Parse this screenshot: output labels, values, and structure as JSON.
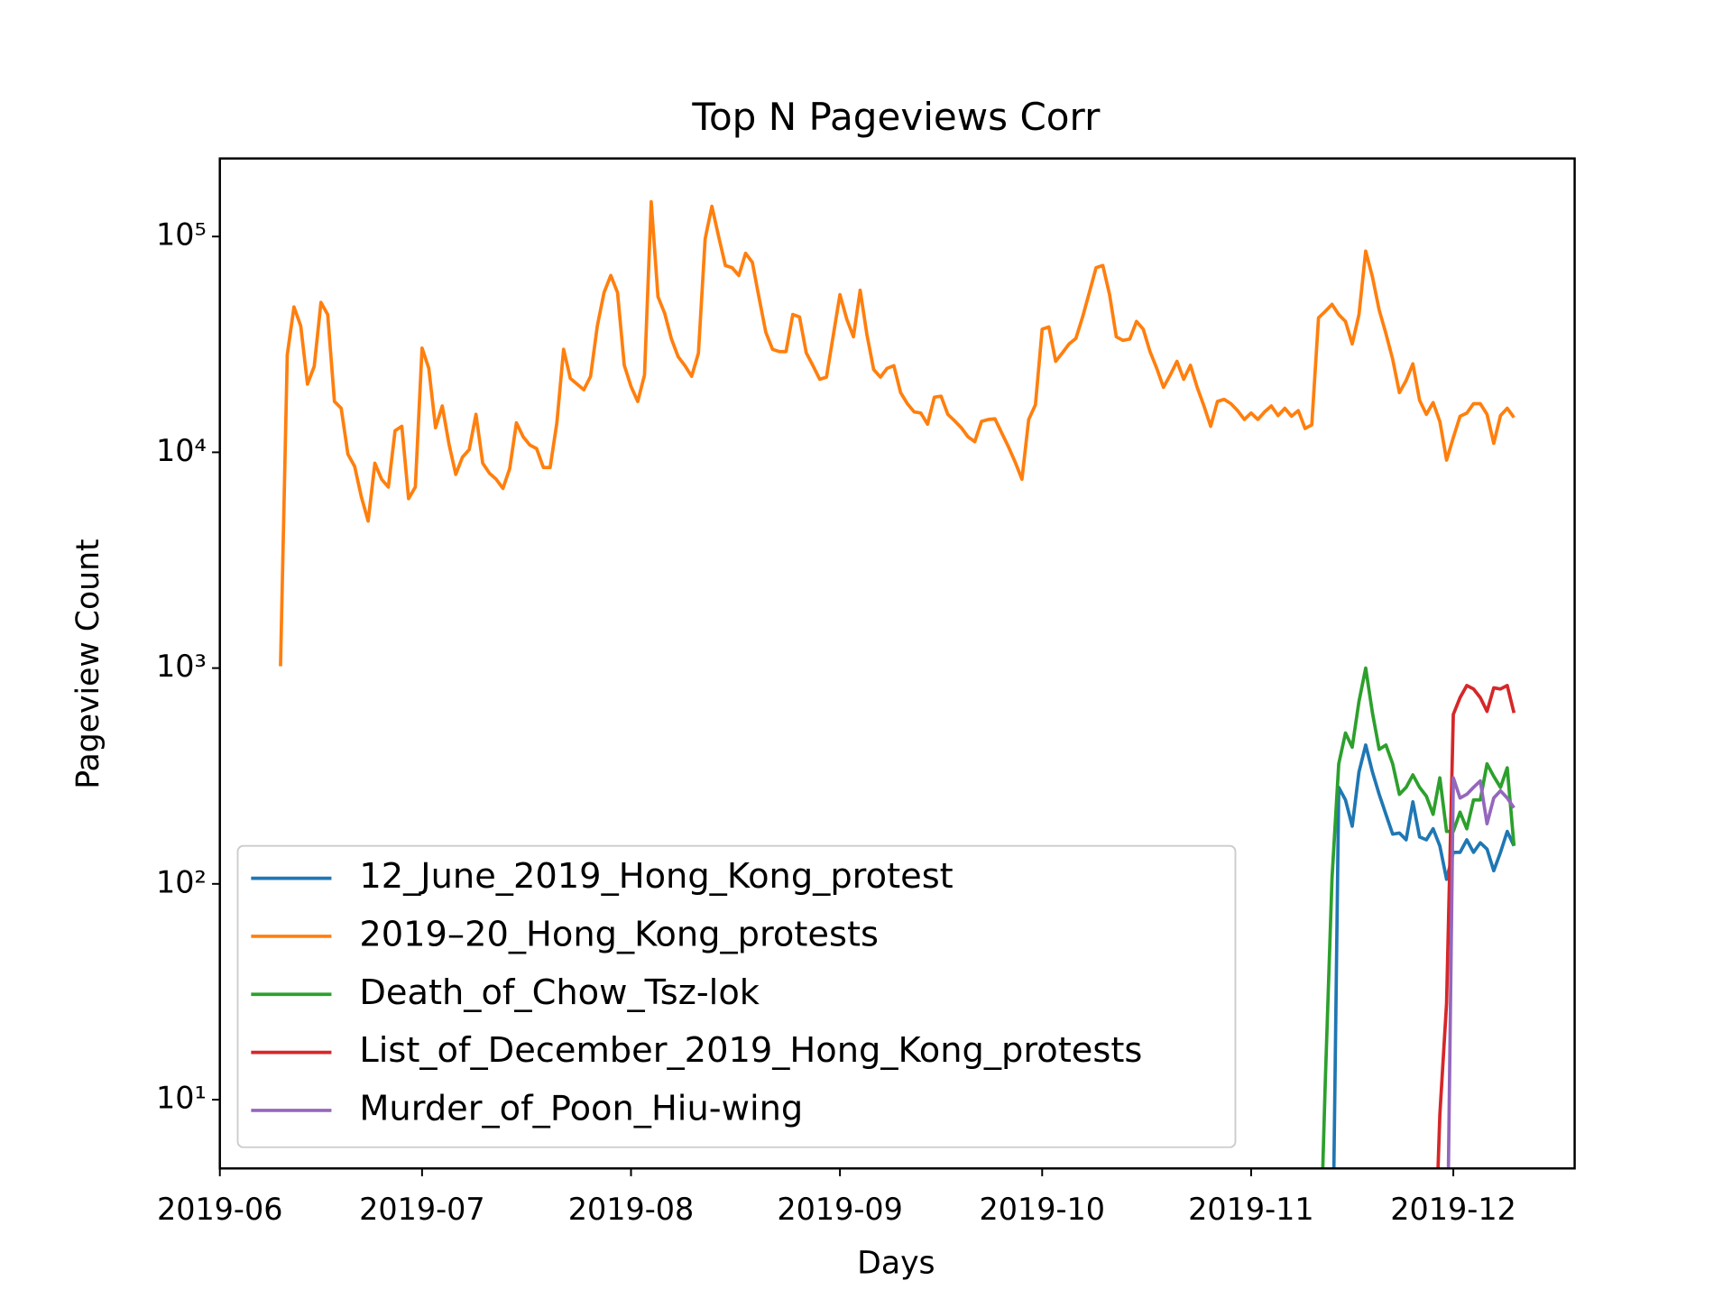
{
  "chart_data": {
    "type": "line",
    "title": "Top N Pageviews Corr",
    "xlabel": "Days",
    "ylabel": "Pageview Count",
    "yscale": "log",
    "xlim": [
      0,
      201
    ],
    "ylim": [
      4.8,
      230000
    ],
    "xticks": [
      {
        "value": 0,
        "label": "2019-06"
      },
      {
        "value": 30,
        "label": "2019-07"
      },
      {
        "value": 61,
        "label": "2019-08"
      },
      {
        "value": 92,
        "label": "2019-09"
      },
      {
        "value": 122,
        "label": "2019-10"
      },
      {
        "value": 153,
        "label": "2019-11"
      },
      {
        "value": 183,
        "label": "2019-12"
      }
    ],
    "yticks": [
      {
        "value": 10,
        "label": "10¹"
      },
      {
        "value": 100,
        "label": "10²"
      },
      {
        "value": 1000,
        "label": "10³"
      },
      {
        "value": 10000,
        "label": "10⁴"
      },
      {
        "value": 100000,
        "label": "10⁵"
      }
    ],
    "grid": false,
    "legend": "lower left",
    "series": [
      {
        "name": "12_June_2019_Hong_Kong_protest",
        "color": "#1f77b4",
        "x": [
          165,
          166,
          167,
          168,
          169,
          170,
          171,
          172,
          173,
          174,
          175,
          176,
          177,
          178,
          179,
          180,
          181,
          182,
          183,
          184,
          185,
          186,
          187,
          188,
          189,
          190,
          191,
          192
        ],
        "values": [
          1,
          280,
          245,
          185,
          330,
          440,
          330,
          260,
          210,
          170,
          172,
          160,
          240,
          165,
          160,
          180,
          150,
          105,
          140,
          140,
          160,
          140,
          155,
          145,
          115,
          140,
          175,
          150
        ]
      },
      {
        "name": "2019–20_Hong_Kong_protests",
        "color": "#ff7f0e",
        "x": [
          9,
          10,
          11,
          12,
          13,
          14,
          15,
          16,
          17,
          18,
          19,
          20,
          21,
          22,
          23,
          24,
          25,
          26,
          27,
          28,
          29,
          30,
          31,
          32,
          33,
          34,
          35,
          36,
          37,
          38,
          39,
          40,
          41,
          42,
          43,
          44,
          45,
          46,
          47,
          48,
          49,
          50,
          51,
          52,
          53,
          54,
          55,
          56,
          57,
          58,
          59,
          60,
          61,
          62,
          63,
          64,
          65,
          66,
          67,
          68,
          69,
          70,
          71,
          72,
          73,
          74,
          75,
          76,
          77,
          78,
          79,
          80,
          81,
          82,
          83,
          84,
          85,
          86,
          87,
          88,
          89,
          90,
          91,
          92,
          93,
          94,
          95,
          96,
          97,
          98,
          99,
          100,
          101,
          102,
          103,
          104,
          105,
          106,
          107,
          108,
          109,
          110,
          111,
          112,
          113,
          114,
          115,
          116,
          117,
          118,
          119,
          120,
          121,
          122,
          123,
          124,
          125,
          126,
          127,
          128,
          129,
          130,
          131,
          132,
          133,
          134,
          135,
          136,
          137,
          138,
          139,
          140,
          141,
          142,
          143,
          144,
          145,
          146,
          147,
          148,
          149,
          150,
          151,
          152,
          153,
          154,
          155,
          156,
          157,
          158,
          159,
          160,
          161,
          162,
          163,
          164,
          165,
          166,
          167,
          168,
          169,
          170,
          171,
          172,
          173,
          174,
          175,
          176,
          177,
          178,
          179,
          180,
          181,
          182,
          183,
          184,
          185,
          186,
          187,
          188,
          189,
          190,
          191,
          192
        ],
        "values": [
          1020,
          28300,
          47200,
          38500,
          20700,
          25000,
          49500,
          43500,
          17200,
          16000,
          9800,
          8600,
          6200,
          4800,
          8900,
          7500,
          6900,
          12600,
          13200,
          6100,
          6900,
          30400,
          24500,
          13000,
          16400,
          10900,
          7900,
          9500,
          10300,
          15000,
          8900,
          8000,
          7500,
          6800,
          8400,
          13700,
          11800,
          10800,
          10400,
          8500,
          8500,
          13700,
          30000,
          22000,
          20700,
          19500,
          22500,
          38500,
          55000,
          66000,
          55000,
          25300,
          20200,
          17200,
          22800,
          145000,
          52600,
          44000,
          33500,
          27700,
          25200,
          22500,
          28800,
          97600,
          138000,
          100000,
          73400,
          71700,
          66000,
          83600,
          76000,
          52000,
          36000,
          30000,
          29300,
          29300,
          43500,
          42400,
          28900,
          25200,
          21800,
          22300,
          34700,
          53800,
          41500,
          34300,
          56400,
          35100,
          24200,
          22300,
          24500,
          25200,
          18900,
          16800,
          15400,
          15200,
          13500,
          18000,
          18200,
          15000,
          14000,
          13000,
          11800,
          11200,
          13900,
          14200,
          14300,
          12300,
          10600,
          9000,
          7500,
          14200,
          16600,
          37200,
          38100,
          26400,
          28900,
          31800,
          33700,
          42400,
          55000,
          71700,
          73400,
          53800,
          34300,
          33000,
          33500,
          40400,
          37200,
          29300,
          24500,
          20000,
          22800,
          26400,
          21800,
          25300,
          20000,
          16400,
          13200,
          17200,
          17600,
          16800,
          15600,
          14200,
          15200,
          14200,
          15400,
          16400,
          14800,
          16000,
          14700,
          15600,
          12900,
          13400,
          42000,
          45000,
          48500,
          43500,
          40400,
          31800,
          43500,
          85600,
          65000,
          45600,
          35500,
          27000,
          18900,
          21500,
          25700,
          17400,
          15000,
          17000,
          13900,
          9200,
          11700,
          14700,
          15200,
          16800,
          16800,
          15000,
          11000,
          14800,
          16000,
          14500
        ]
      },
      {
        "name": "Death_of_Chow_Tsz-lok",
        "color": "#2ca02c",
        "x": [
          163,
          164,
          165,
          166,
          167,
          168,
          169,
          170,
          171,
          172,
          173,
          174,
          175,
          176,
          177,
          178,
          179,
          180,
          181,
          182,
          183,
          184,
          185,
          186,
          187,
          188,
          189,
          190,
          191,
          192
        ],
        "values": [
          1,
          12,
          106,
          360,
          500,
          430,
          700,
          1000,
          620,
          420,
          440,
          360,
          260,
          280,
          320,
          280,
          255,
          210,
          310,
          175,
          175,
          215,
          180,
          245,
          245,
          360,
          315,
          280,
          345,
          150
        ]
      },
      {
        "name": "List_of_December_2019_Hong_Kong_protests",
        "color": "#d62728",
        "x": [
          180,
          181,
          182,
          183,
          184,
          185,
          186,
          187,
          188,
          189,
          190,
          191,
          192
        ],
        "values": [
          1,
          8.5,
          28,
          610,
          730,
          830,
          800,
          730,
          630,
          810,
          800,
          830,
          620
        ]
      },
      {
        "name": "Murder_of_Poon_Hiu-wing",
        "color": "#9467bd",
        "x": [
          182,
          183,
          184,
          185,
          186,
          187,
          188,
          189,
          190,
          191,
          192
        ],
        "values": [
          1,
          310,
          250,
          260,
          280,
          300,
          190,
          250,
          270,
          250,
          225
        ]
      }
    ]
  }
}
